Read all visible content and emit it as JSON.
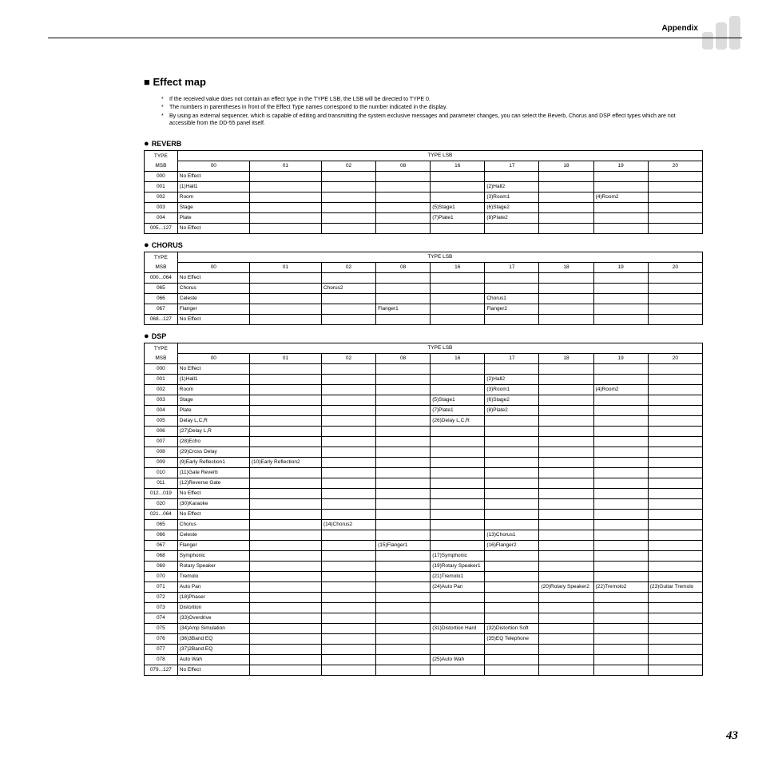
{
  "header": {
    "appendix": "Appendix",
    "logo": {
      "fill": "#dcdcdc"
    }
  },
  "title": "Effect map",
  "notes": [
    "If the received value does not contain an effect type in the TYPE LSB, the LSB will be directed to TYPE 0.",
    "The numbers in parentheses in front of the Effect Type names correspond to the number indicated in the display.",
    "By using an external sequencer, which is capable of editing and transmitting the system exclusive messages and parameter changes, you can select the Reverb, Chorus and DSP effect types which are not accessible from the DD-55 panel itself."
  ],
  "lsb_header_label": "TYPE LSB",
  "msb_header_label_line1": "TYPE",
  "msb_header_label_line2": "MSB",
  "lsb_cols": [
    "00",
    "01",
    "02",
    "08",
    "16",
    "17",
    "18",
    "19",
    "20"
  ],
  "tables": [
    {
      "title": "REVERB",
      "rows": [
        {
          "msb": "000",
          "cells": [
            "No Effect",
            "",
            "",
            "",
            "",
            "",
            "",
            "",
            ""
          ]
        },
        {
          "msb": "001",
          "cells": [
            "(1)Hall1",
            "",
            "",
            "",
            "",
            "(2)Hall2",
            "",
            "",
            ""
          ]
        },
        {
          "msb": "002",
          "cells": [
            "Room",
            "",
            "",
            "",
            "",
            "(3)Room1",
            "",
            "(4)Room2",
            ""
          ]
        },
        {
          "msb": "003",
          "cells": [
            "Stage",
            "",
            "",
            "",
            "(5)Stage1",
            "(6)Stage2",
            "",
            "",
            ""
          ]
        },
        {
          "msb": "004",
          "cells": [
            "Plate",
            "",
            "",
            "",
            "(7)Plate1",
            "(8)Plate2",
            "",
            "",
            ""
          ]
        },
        {
          "msb": "005...127",
          "cells": [
            "No Effect",
            "",
            "",
            "",
            "",
            "",
            "",
            "",
            ""
          ]
        }
      ]
    },
    {
      "title": "CHORUS",
      "rows": [
        {
          "msb": "000...064",
          "cells": [
            "No Effect",
            "",
            "",
            "",
            "",
            "",
            "",
            "",
            ""
          ]
        },
        {
          "msb": "065",
          "cells": [
            "Chorus",
            "",
            "Chorus2",
            "",
            "",
            "",
            "",
            "",
            ""
          ]
        },
        {
          "msb": "066",
          "cells": [
            "Celeste",
            "",
            "",
            "",
            "",
            "Chorus1",
            "",
            "",
            ""
          ]
        },
        {
          "msb": "067",
          "cells": [
            "Flanger",
            "",
            "",
            "Flanger1",
            "",
            "Flanger2",
            "",
            "",
            ""
          ]
        },
        {
          "msb": "068...127",
          "cells": [
            "No Effect",
            "",
            "",
            "",
            "",
            "",
            "",
            "",
            ""
          ]
        }
      ]
    },
    {
      "title": "DSP",
      "rows": [
        {
          "msb": "000",
          "cells": [
            "No Effect",
            "",
            "",
            "",
            "",
            "",
            "",
            "",
            ""
          ]
        },
        {
          "msb": "001",
          "cells": [
            "(1)Hall1",
            "",
            "",
            "",
            "",
            "(2)Hall2",
            "",
            "",
            ""
          ]
        },
        {
          "msb": "002",
          "cells": [
            "Room",
            "",
            "",
            "",
            "",
            "(3)Room1",
            "",
            "(4)Room2",
            ""
          ]
        },
        {
          "msb": "003",
          "cells": [
            "Stage",
            "",
            "",
            "",
            "(5)Stage1",
            "(6)Stage2",
            "",
            "",
            ""
          ]
        },
        {
          "msb": "004",
          "cells": [
            "Plate",
            "",
            "",
            "",
            "(7)Plate1",
            "(8)Plate2",
            "",
            "",
            ""
          ]
        },
        {
          "msb": "005",
          "cells": [
            "Delay L,C,R",
            "",
            "",
            "",
            "(26)Delay L,C,R",
            "",
            "",
            "",
            ""
          ]
        },
        {
          "msb": "006",
          "cells": [
            "(27)Delay L,R",
            "",
            "",
            "",
            "",
            "",
            "",
            "",
            ""
          ]
        },
        {
          "msb": "007",
          "cells": [
            "(28)Echo",
            "",
            "",
            "",
            "",
            "",
            "",
            "",
            ""
          ]
        },
        {
          "msb": "008",
          "cells": [
            "(29)Cross Delay",
            "",
            "",
            "",
            "",
            "",
            "",
            "",
            ""
          ]
        },
        {
          "msb": "009",
          "cells": [
            "(9)Early Reflection1",
            "(10)Early Reflection2",
            "",
            "",
            "",
            "",
            "",
            "",
            ""
          ]
        },
        {
          "msb": "010",
          "cells": [
            "(11)Gate Reverb",
            "",
            "",
            "",
            "",
            "",
            "",
            "",
            ""
          ]
        },
        {
          "msb": "011",
          "cells": [
            "(12)Reverse Gate",
            "",
            "",
            "",
            "",
            "",
            "",
            "",
            ""
          ]
        },
        {
          "msb": "012...019",
          "cells": [
            "No Effect",
            "",
            "",
            "",
            "",
            "",
            "",
            "",
            ""
          ]
        },
        {
          "msb": "020",
          "cells": [
            "(30)Karaoke",
            "",
            "",
            "",
            "",
            "",
            "",
            "",
            ""
          ]
        },
        {
          "msb": "021...064",
          "cells": [
            "No Effect",
            "",
            "",
            "",
            "",
            "",
            "",
            "",
            ""
          ]
        },
        {
          "msb": "065",
          "cells": [
            "Chorus",
            "",
            "(14)Chorus2",
            "",
            "",
            "",
            "",
            "",
            ""
          ]
        },
        {
          "msb": "066",
          "cells": [
            "Celeste",
            "",
            "",
            "",
            "",
            "(13)Chorus1",
            "",
            "",
            ""
          ]
        },
        {
          "msb": "067",
          "cells": [
            "Flanger",
            "",
            "",
            "(15)Flanger1",
            "",
            "(16)Flanger2",
            "",
            "",
            ""
          ]
        },
        {
          "msb": "068",
          "cells": [
            "Symphonic",
            "",
            "",
            "",
            "(17)Symphonic",
            "",
            "",
            "",
            ""
          ]
        },
        {
          "msb": "069",
          "cells": [
            "Rotary Speaker",
            "",
            "",
            "",
            "(19)Rotary Speaker1",
            "",
            "",
            "",
            ""
          ]
        },
        {
          "msb": "070",
          "cells": [
            "Tremolo",
            "",
            "",
            "",
            "(21)Tremolo1",
            "",
            "",
            "",
            ""
          ]
        },
        {
          "msb": "071",
          "cells": [
            "Auto Pan",
            "",
            "",
            "",
            "(24)Auto Pan",
            "",
            "(20)Rotary Speaker2",
            "(22)Tremolo2",
            "(23)Guitar Tremolo"
          ]
        },
        {
          "msb": "072",
          "cells": [
            "(18)Phaser",
            "",
            "",
            "",
            "",
            "",
            "",
            "",
            ""
          ]
        },
        {
          "msb": "073",
          "cells": [
            "Distortion",
            "",
            "",
            "",
            "",
            "",
            "",
            "",
            ""
          ]
        },
        {
          "msb": "074",
          "cells": [
            "(33)Overdrive",
            "",
            "",
            "",
            "",
            "",
            "",
            "",
            ""
          ]
        },
        {
          "msb": "075",
          "cells": [
            "(34)Amp Simulation",
            "",
            "",
            "",
            "(31)Distortion Hard",
            "(32)Distortion Soft",
            "",
            "",
            ""
          ]
        },
        {
          "msb": "076",
          "cells": [
            "(36)3Band EQ",
            "",
            "",
            "",
            "",
            "(35)EQ Telephone",
            "",
            "",
            ""
          ]
        },
        {
          "msb": "077",
          "cells": [
            "(37)2Band EQ",
            "",
            "",
            "",
            "",
            "",
            "",
            "",
            ""
          ]
        },
        {
          "msb": "078",
          "cells": [
            "Auto Wah",
            "",
            "",
            "",
            "(25)Auto Wah",
            "",
            "",
            "",
            ""
          ]
        },
        {
          "msb": "079...127",
          "cells": [
            "No Effect",
            "",
            "",
            "",
            "",
            "",
            "",
            "",
            ""
          ]
        }
      ]
    }
  ],
  "page_number": "43"
}
